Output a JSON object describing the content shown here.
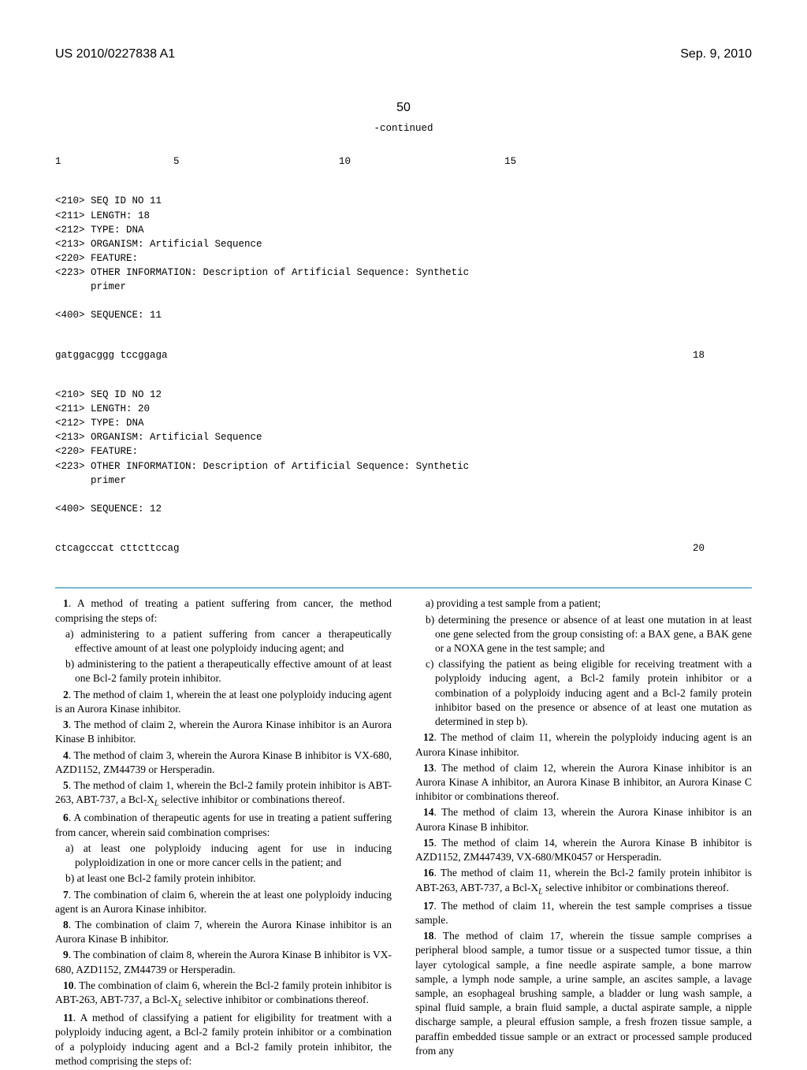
{
  "header": {
    "patent_number": "US 2010/0227838 A1",
    "date": "Sep. 9, 2010"
  },
  "page_number": "50",
  "continued_label": "-continued",
  "seq_section": {
    "number_row": "1                   5                           10                          15",
    "seq11_block": [
      "<210> SEQ ID NO 11",
      "<211> LENGTH: 18",
      "<212> TYPE: DNA",
      "<213> ORGANISM: Artificial Sequence",
      "<220> FEATURE:",
      "<223> OTHER INFORMATION: Description of Artificial Sequence: Synthetic",
      "      primer",
      "",
      "<400> SEQUENCE: 11"
    ],
    "seq11_data": "gatggacggg tccggaga",
    "seq11_len": "18",
    "seq12_block": [
      "<210> SEQ ID NO 12",
      "<211> LENGTH: 20",
      "<212> TYPE: DNA",
      "<213> ORGANISM: Artificial Sequence",
      "<220> FEATURE:",
      "<223> OTHER INFORMATION: Description of Artificial Sequence: Synthetic",
      "      primer",
      "",
      "<400> SEQUENCE: 12"
    ],
    "seq12_data": "ctcagcccat cttcttccag",
    "seq12_len": "20"
  },
  "claims_left": [
    {
      "type": "num",
      "n": "1",
      "text": ". A method of treating a patient suffering from cancer, the method comprising the steps of:"
    },
    {
      "type": "sub",
      "text": "a) administering to a patient suffering from cancer a therapeutically effective amount of at least one polyploidy inducing agent; and"
    },
    {
      "type": "sub",
      "text": "b) administering to the patient a therapeutically effective amount of at least one Bcl-2 family protein inhibitor."
    },
    {
      "type": "num",
      "n": "2",
      "text": ". The method of claim 1, wherein the at least one polyploidy inducing agent is an Aurora Kinase inhibitor."
    },
    {
      "type": "num",
      "n": "3",
      "text": ". The method of claim 2, wherein the Aurora Kinase inhibitor is an Aurora Kinase B inhibitor."
    },
    {
      "type": "num",
      "n": "4",
      "text": ". The method of claim 3, wherein the Aurora Kinase B inhibitor is VX-680, AZD1152, ZM44739 or Hersperadin."
    },
    {
      "type": "num",
      "n": "5",
      "text": ". The method of claim 1, wherein the Bcl-2 family protein inhibitor is ABT-263, ABT-737, a Bcl-XL selective inhibitor or combinations thereof.",
      "hasSub": true
    },
    {
      "type": "num",
      "n": "6",
      "text": ". A combination of therapeutic agents for use in treating a patient suffering from cancer, wherein said combination comprises:"
    },
    {
      "type": "sub",
      "text": "a) at least one polyploidy inducing agent for use in inducing polyploidization in one or more cancer cells in the patient; and"
    },
    {
      "type": "sub",
      "text": "b) at least one Bcl-2 family protein inhibitor."
    },
    {
      "type": "num",
      "n": "7",
      "text": ". The combination of claim 6, wherein the at least one polyploidy inducing agent is an Aurora Kinase inhibitor."
    },
    {
      "type": "num",
      "n": "8",
      "text": ". The combination of claim 7, wherein the Aurora Kinase inhibitor is an Aurora Kinase B inhibitor."
    },
    {
      "type": "num",
      "n": "9",
      "text": ". The combination of claim 8, wherein the Aurora Kinase B inhibitor is VX-680, AZD1152, ZM44739 or Hersperadin."
    },
    {
      "type": "num",
      "n": "10",
      "text": ". The combination of claim 6, wherein the Bcl-2 family protein inhibitor is ABT-263, ABT-737, a Bcl-XL selective inhibitor or combinations thereof.",
      "hasSub": true
    },
    {
      "type": "num",
      "n": "11",
      "text": ". A method of classifying a patient for eligibility for treatment with a polyploidy inducing agent, a Bcl-2 family protein inhibitor or a combination of a polyploidy inducing agent and a Bcl-2 family protein inhibitor, the method comprising the steps of:"
    }
  ],
  "claims_right": [
    {
      "type": "sub",
      "text": "a) providing a test sample from a patient;"
    },
    {
      "type": "sub",
      "text": "b) determining the presence or absence of at least one mutation in at least one gene selected from the group consisting of: a BAX gene, a BAK gene or a NOXA gene in the test sample; and"
    },
    {
      "type": "sub",
      "text": "c) classifying the patient as being eligible for receiving treatment with a polyploidy inducing agent, a Bcl-2 family protein inhibitor or a combination of a polyploidy inducing agent and a Bcl-2 family protein inhibitor based on the presence or absence of at least one mutation as determined in step b)."
    },
    {
      "type": "num",
      "n": "12",
      "text": ". The method of claim 11, wherein the polyploidy inducing agent is an Aurora Kinase inhibitor."
    },
    {
      "type": "num",
      "n": "13",
      "text": ". The method of claim 12, wherein the Aurora Kinase inhibitor is an Aurora Kinase A inhibitor, an Aurora Kinase B inhibitor, an Aurora Kinase C inhibitor or combinations thereof."
    },
    {
      "type": "num",
      "n": "14",
      "text": ". The method of claim 13, wherein the Aurora Kinase inhibitor is an Aurora Kinase B inhibitor."
    },
    {
      "type": "num",
      "n": "15",
      "text": ". The method of claim 14, wherein the Aurora Kinase B inhibitor is AZD1152, ZM447439, VX-680/MK0457 or Hersperadin."
    },
    {
      "type": "num",
      "n": "16",
      "text": ". The method of claim 11, wherein the Bcl-2 family protein inhibitor is ABT-263, ABT-737, a Bcl-XL selective inhibitor or combinations thereof.",
      "hasSub": true
    },
    {
      "type": "num",
      "n": "17",
      "text": ". The method of claim 11, wherein the test sample comprises a tissue sample."
    },
    {
      "type": "num",
      "n": "18",
      "text": ". The method of claim 17, wherein the tissue sample comprises a peripheral blood sample, a tumor tissue or a suspected tumor tissue, a thin layer cytological sample, a fine needle aspirate sample, a bone marrow sample, a lymph node sample, a urine sample, an ascites sample, a lavage sample, an esophageal brushing sample, a bladder or lung wash sample, a spinal fluid sample, a brain fluid sample, a ductal aspirate sample, a nipple discharge sample, a pleural effusion sample, a fresh frozen tissue sample, a paraffin embedded tissue sample or an extract or processed sample produced from any"
    }
  ]
}
